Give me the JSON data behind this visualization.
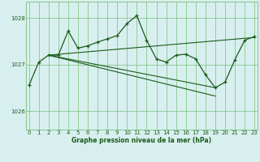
{
  "background_color": "#d8efef",
  "grid_color": "#7abf7a",
  "line_color": "#1a5c1a",
  "ylabel_ticks": [
    1026,
    1027,
    1028
  ],
  "x_ticks": [
    0,
    1,
    2,
    3,
    4,
    5,
    6,
    7,
    8,
    9,
    10,
    11,
    12,
    13,
    14,
    15,
    16,
    17,
    18,
    19,
    20,
    21,
    22,
    23
  ],
  "xlim": [
    -0.3,
    23.3
  ],
  "ylim": [
    1025.6,
    1028.35
  ],
  "xlabel": "Graphe pression niveau de la mer (hPa)",
  "main_x": [
    0,
    1,
    2,
    3,
    4,
    5,
    6,
    7,
    8,
    9,
    10,
    11,
    12,
    13,
    14,
    15,
    16,
    17,
    18,
    19,
    20,
    21,
    22,
    23
  ],
  "main_y": [
    1026.55,
    1027.05,
    1027.2,
    1027.2,
    1027.72,
    1027.35,
    1027.4,
    1027.48,
    1027.55,
    1027.62,
    1027.88,
    1028.05,
    1027.52,
    1027.12,
    1027.05,
    1027.2,
    1027.22,
    1027.12,
    1026.78,
    1026.5,
    1026.62,
    1027.1,
    1027.52,
    1027.6
  ],
  "trend1_x": [
    2,
    23
  ],
  "trend1_y": [
    1027.2,
    1027.58
  ],
  "trend2_x": [
    2,
    19
  ],
  "trend2_y": [
    1027.2,
    1026.5
  ],
  "trend3_x": [
    2,
    19
  ],
  "trend3_y": [
    1027.2,
    1026.32
  ]
}
